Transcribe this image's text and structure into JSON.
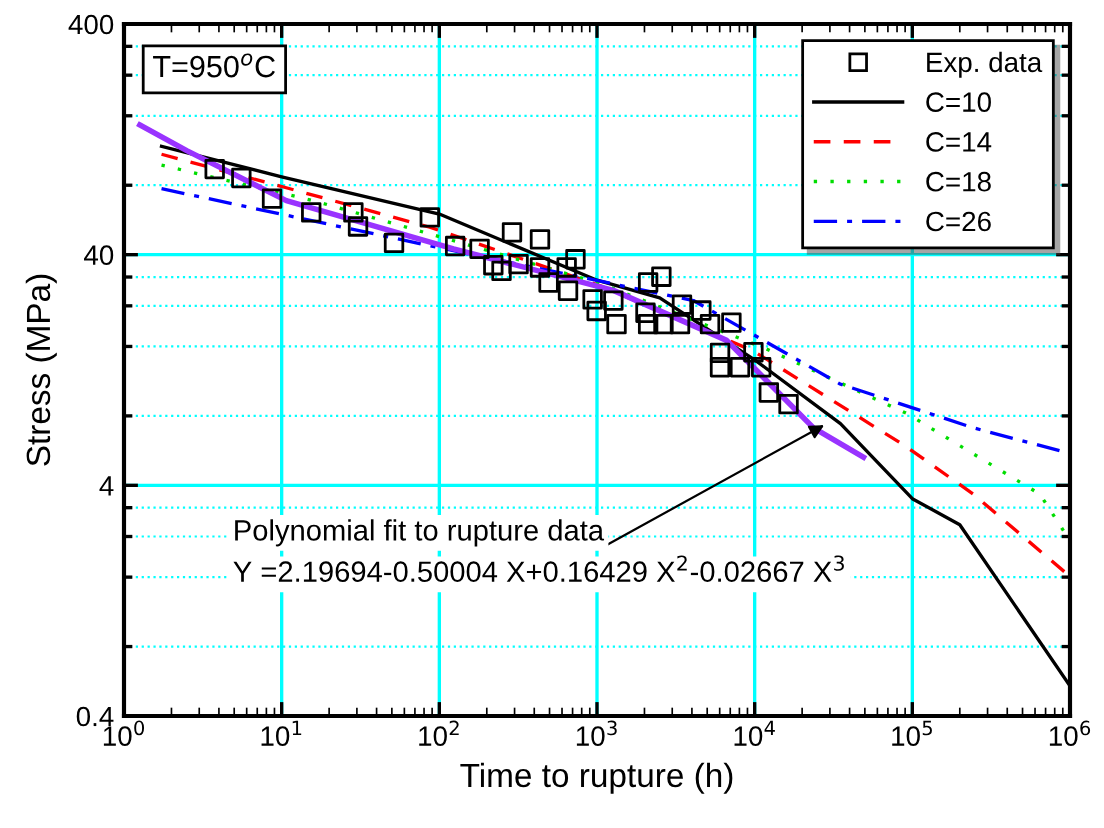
{
  "chart_data": {
    "type": "line",
    "xlabel": "Time to rupture (h)",
    "ylabel": "Stress (MPa)",
    "log": "xy",
    "xlim": [
      1,
      1000000
    ],
    "ylim": [
      0.4,
      400
    ],
    "xticks": [
      {
        "value": 1,
        "label": "10$^{0}$"
      },
      {
        "value": 10,
        "label": "10$^{1}$"
      },
      {
        "value": 100,
        "label": "10$^{2}$"
      },
      {
        "value": 1000,
        "label": "10$^{3}$"
      },
      {
        "value": 10000,
        "label": "10$^{4}$"
      },
      {
        "value": 100000,
        "label": "10$^{5}$"
      },
      {
        "value": 1000000,
        "label": "10$^{6}$"
      }
    ],
    "yticks": [
      0.4,
      {
        "value": 0.8,
        "label": null
      },
      {
        "value": 1.6,
        "label": null
      },
      {
        "value": 2.4,
        "label": null
      },
      {
        "value": 3.2,
        "label": null
      },
      4,
      {
        "value": 8,
        "label": null
      },
      {
        "value": 16,
        "label": null
      },
      {
        "value": 24,
        "label": null
      },
      {
        "value": 32,
        "label": null
      },
      40,
      {
        "value": 80,
        "label": null
      },
      {
        "value": 160,
        "label": null
      },
      {
        "value": 240,
        "label": null
      },
      {
        "value": 320,
        "label": null
      },
      400
    ],
    "grid": true,
    "legend": "top right",
    "series": [
      {
        "name": "Exp. data",
        "type": "scatter",
        "marker": "square",
        "color": "#000000",
        "x": [
          3.76,
          5.55,
          8.69,
          15.4,
          28.5,
          30.5,
          51.6,
          87,
          126,
          180,
          220,
          248,
          289,
          318,
          435,
          435,
          493,
          655,
          730,
          642,
          938,
          995,
          1270,
          1330,
          2110,
          2560,
          2030,
          2110,
          2640,
          3460,
          3360,
          4590,
          5210,
          7120,
          6030,
          6030,
          8070,
          9820,
          11000,
          12300,
          16400
        ],
        "values": [
          94,
          86,
          70,
          61,
          61,
          53,
          45,
          58,
          43.6,
          42.4,
          36,
          34,
          50,
          36.4,
          46.6,
          35.2,
          30.3,
          27.9,
          38.2,
          35.2,
          25.6,
          22.8,
          25.3,
          20,
          30.3,
          32.1,
          22.4,
          20,
          20,
          24.3,
          20,
          22.9,
          20,
          20.3,
          15,
          13,
          13,
          15.1,
          13,
          10.1,
          9
        ]
      },
      {
        "name": "C=10",
        "line_style": "solid",
        "color": "#000000",
        "x": [
          1.73,
          10,
          100,
          1000,
          2500,
          10000,
          35000,
          100000,
          200000,
          400000,
          1000000
        ],
        "values": [
          118,
          87,
          60,
          31,
          26,
          14,
          7.4,
          3.5,
          2.7,
          1.35,
          0.54
        ]
      },
      {
        "name": "C=14",
        "line_style": "dashed",
        "color": "#ff0000",
        "x": [
          1.73,
          10.7,
          87,
          1050,
          9800,
          91000,
          244000,
          1000000
        ],
        "values": [
          109,
          78,
          52.6,
          29.3,
          15.3,
          5.9,
          3.66,
          1.61
        ]
      },
      {
        "name": "C=18",
        "line_style": "dotted",
        "color": "#00dd00",
        "x": [
          1.73,
          15.9,
          147,
          1050,
          11900,
          92000,
          645000,
          1000000
        ],
        "values": [
          97.7,
          68.6,
          44.4,
          30,
          15.6,
          8.2,
          3.66,
          2.3
        ]
      },
      {
        "name": "C=26",
        "line_style": "dashdot",
        "color": "#0000ff",
        "x": [
          1.73,
          10.7,
          123,
          4090,
          34800,
          244000,
          1000000
        ],
        "values": [
          77.3,
          59.3,
          41.6,
          25.3,
          11,
          7.1,
          5.5
        ]
      },
      {
        "line_style": "solid",
        "color": "#9933ff",
        "x": [
          1.26,
          2.5,
          10.7,
          123,
          1270,
          6640,
          23600,
          49000
        ],
        "values": [
          146,
          113,
          68.6,
          42.4,
          28,
          17,
          7.1,
          5.3
        ]
      }
    ],
    "annotations": [
      "T=950$^{o}$C",
      {
        "text": "Polynomial fit to rupture data",
        "x": 27600,
        "y": 7.3
      },
      "Y =2.19694-0.50004 X+0.16429 X$^{2}$-0.02667 X$^{3}$"
    ]
  }
}
